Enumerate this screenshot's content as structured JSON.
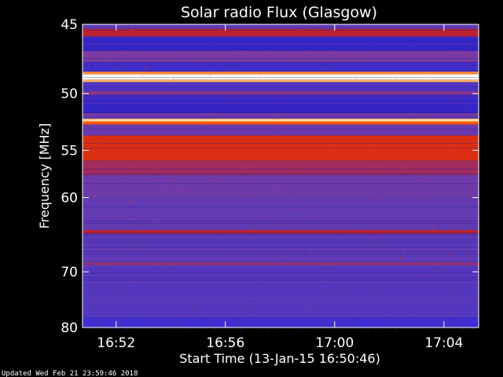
{
  "chart_data": {
    "type": "heatmap",
    "title": "Solar radio Flux (Glasgow)",
    "xlabel": "Start Time (13-Jan-15 16:50:46)",
    "ylabel": "Frequency [MHz]",
    "x_ticks": [
      "16:52",
      "16:56",
      "17:00",
      "17:04"
    ],
    "x_tick_minutes": [
      1.23,
      5.23,
      9.23,
      13.23
    ],
    "x_range_minutes": [
      0,
      14.5
    ],
    "y_ticks": [
      45,
      50,
      55,
      60,
      70,
      80
    ],
    "y_range_mhz": [
      45,
      80
    ],
    "y_scale": "reciprocal",
    "colormap": [
      "#10108c",
      "#3a2ad0",
      "#5a3ab8",
      "#7a3aa0",
      "#c81e1e",
      "#ff5000",
      "#ffd080",
      "#ffffff"
    ],
    "bands": [
      {
        "from_mhz": 45.0,
        "to_mhz": 45.3,
        "level": 0.3
      },
      {
        "from_mhz": 45.3,
        "to_mhz": 45.8,
        "level": 0.55
      },
      {
        "from_mhz": 45.8,
        "to_mhz": 46.8,
        "level": 0.12
      },
      {
        "from_mhz": 46.8,
        "to_mhz": 47.6,
        "level": 0.42
      },
      {
        "from_mhz": 47.6,
        "to_mhz": 48.3,
        "level": 0.18
      },
      {
        "from_mhz": 48.3,
        "to_mhz": 48.5,
        "level": 0.78
      },
      {
        "from_mhz": 48.5,
        "to_mhz": 48.9,
        "level": 1.0
      },
      {
        "from_mhz": 48.9,
        "to_mhz": 49.1,
        "level": 0.82
      },
      {
        "from_mhz": 49.1,
        "to_mhz": 49.8,
        "level": 0.22
      },
      {
        "from_mhz": 49.8,
        "to_mhz": 50.1,
        "level": 0.45
      },
      {
        "from_mhz": 50.1,
        "to_mhz": 51.6,
        "level": 0.12
      },
      {
        "from_mhz": 51.6,
        "to_mhz": 52.1,
        "level": 0.38
      },
      {
        "from_mhz": 52.1,
        "to_mhz": 52.35,
        "level": 0.88
      },
      {
        "from_mhz": 52.35,
        "to_mhz": 52.6,
        "level": 0.72
      },
      {
        "from_mhz": 52.6,
        "to_mhz": 53.6,
        "level": 0.35
      },
      {
        "from_mhz": 53.6,
        "to_mhz": 56.0,
        "level": 0.62
      },
      {
        "from_mhz": 56.0,
        "to_mhz": 57.5,
        "level": 0.5
      },
      {
        "from_mhz": 57.5,
        "to_mhz": 60.0,
        "level": 0.37
      },
      {
        "from_mhz": 60.0,
        "to_mhz": 64.0,
        "level": 0.32
      },
      {
        "from_mhz": 64.0,
        "to_mhz": 64.5,
        "level": 0.55
      },
      {
        "from_mhz": 64.5,
        "to_mhz": 68.5,
        "level": 0.29
      },
      {
        "from_mhz": 68.5,
        "to_mhz": 69.0,
        "level": 0.46
      },
      {
        "from_mhz": 69.0,
        "to_mhz": 78.0,
        "level": 0.26
      },
      {
        "from_mhz": 78.0,
        "to_mhz": 80.0,
        "level": 0.18
      }
    ],
    "grid": false,
    "legend": "none"
  },
  "footer": {
    "updated": "Updated Wed Feb 21 23:59:46 2018"
  }
}
